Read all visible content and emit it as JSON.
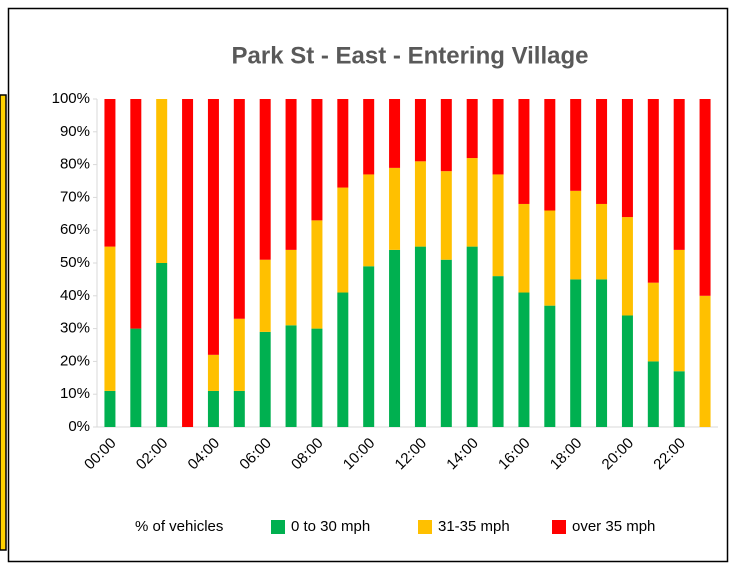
{
  "chart_data": {
    "type": "stacked_bar",
    "title": "Park St - East - Entering Village",
    "legend_title": "% of vehicles",
    "categories": [
      "00:00",
      null,
      "02:00",
      null,
      "04:00",
      null,
      "06:00",
      null,
      "08:00",
      null,
      "10:00",
      null,
      "12:00",
      null,
      "14:00",
      null,
      "16:00",
      null,
      "18:00",
      null,
      "20:00",
      null,
      "22:00",
      null
    ],
    "series": [
      {
        "name": "0 to 30 mph",
        "color": "#00b050",
        "values": [
          11,
          30,
          50,
          0,
          11,
          11,
          29,
          31,
          30,
          41,
          49,
          54,
          55,
          51,
          55,
          46,
          41,
          37,
          45,
          45,
          34,
          20,
          17,
          0
        ]
      },
      {
        "name": "31-35 mph",
        "color": "#ffc000",
        "values": [
          44,
          0,
          50,
          0,
          11,
          22,
          22,
          23,
          33,
          32,
          28,
          25,
          26,
          27,
          27,
          31,
          27,
          29,
          27,
          23,
          30,
          24,
          37,
          40
        ]
      },
      {
        "name": "over 35 mph",
        "color": "#ff0000",
        "values": [
          45,
          70,
          0,
          100,
          78,
          67,
          49,
          46,
          37,
          27,
          23,
          21,
          19,
          22,
          18,
          23,
          32,
          34,
          28,
          32,
          36,
          56,
          46,
          60
        ]
      }
    ],
    "ylim": [
      0,
      100
    ],
    "yticks": [
      {
        "value": 0,
        "label": "0%"
      },
      {
        "value": 10,
        "label": "10%"
      },
      {
        "value": 20,
        "label": "20%"
      },
      {
        "value": 30,
        "label": "30%"
      },
      {
        "value": 40,
        "label": "40%"
      },
      {
        "value": 50,
        "label": "50%"
      },
      {
        "value": 60,
        "label": "60%"
      },
      {
        "value": 70,
        "label": "70%"
      },
      {
        "value": 80,
        "label": "80%"
      },
      {
        "value": 90,
        "label": "90%"
      },
      {
        "value": 100,
        "label": "100%"
      }
    ],
    "legend_position": "bottom"
  }
}
